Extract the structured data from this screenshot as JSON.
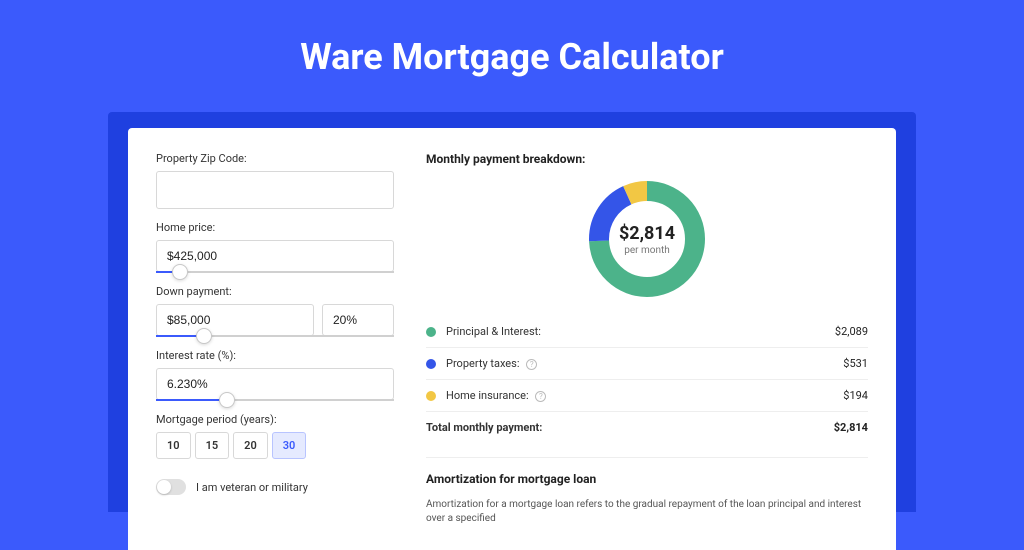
{
  "page": {
    "title": "Ware Mortgage Calculator",
    "bg_color": "#3b5afc",
    "accent_color": "#3b5afc"
  },
  "form": {
    "zip": {
      "label": "Property Zip Code:",
      "value": ""
    },
    "home_price": {
      "label": "Home price:",
      "value": "$425,000",
      "slider_pct": 10
    },
    "down_payment": {
      "label": "Down payment:",
      "value": "$85,000",
      "pct": "20%",
      "slider_pct": 20
    },
    "interest": {
      "label": "Interest rate (%):",
      "value": "6.230%",
      "slider_pct": 30
    },
    "period": {
      "label": "Mortgage period (years):",
      "options": [
        "10",
        "15",
        "20",
        "30"
      ],
      "active_index": 3
    },
    "veteran": {
      "label": "I am veteran or military",
      "value": false
    }
  },
  "breakdown": {
    "title": "Monthly payment breakdown:",
    "total_amount": "$2,814",
    "total_sub": "per month",
    "donut": {
      "radius": 48,
      "stroke": 20,
      "segments": [
        {
          "color": "#4cb38a",
          "value": 2089
        },
        {
          "color": "#3455e8",
          "value": 531
        },
        {
          "color": "#f2c744",
          "value": 194
        }
      ]
    },
    "items": [
      {
        "swatch": "#4cb38a",
        "label": "Principal & Interest:",
        "value": "$2,089",
        "help": false
      },
      {
        "swatch": "#3455e8",
        "label": "Property taxes:",
        "value": "$531",
        "help": true
      },
      {
        "swatch": "#f2c744",
        "label": "Home insurance:",
        "value": "$194",
        "help": true
      }
    ],
    "total_row": {
      "label": "Total monthly payment:",
      "value": "$2,814"
    }
  },
  "amort": {
    "title": "Amortization for mortgage loan",
    "text": "Amortization for a mortgage loan refers to the gradual repayment of the loan principal and interest over a specified"
  }
}
